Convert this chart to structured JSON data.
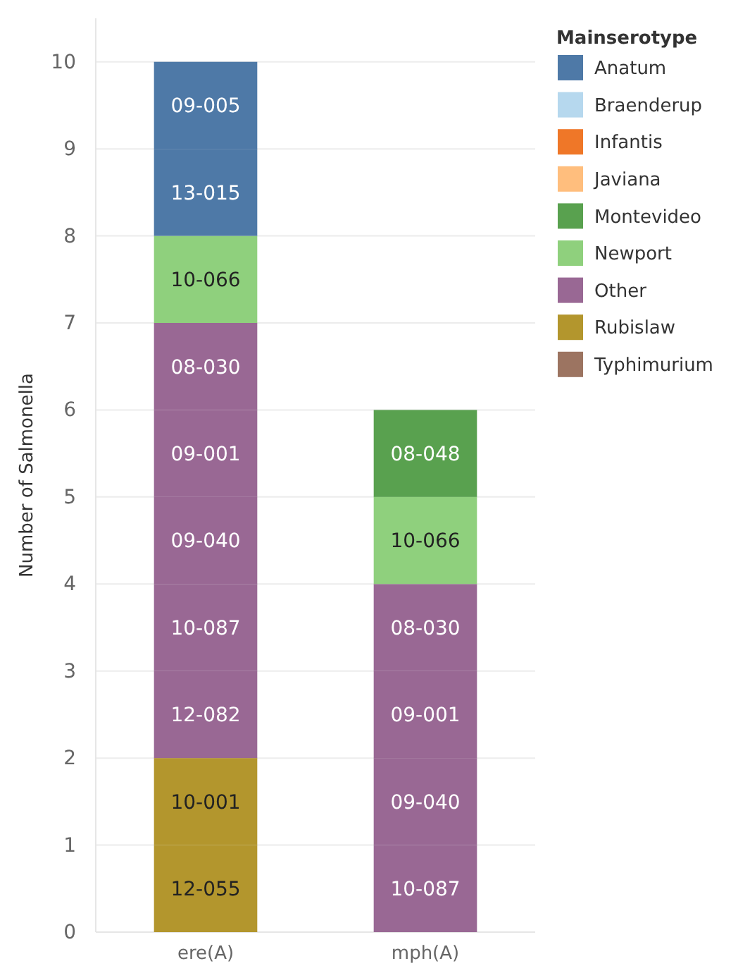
{
  "chart_data": {
    "type": "bar",
    "stacked": true,
    "ylabel": "Number of Salmonella",
    "legend_title": "Mainserotype",
    "legend": "right",
    "grid": "y",
    "categories": [
      "ere(A)",
      "mph(A)"
    ],
    "ylim": [
      0,
      10.5
    ],
    "yticks": [
      0,
      1,
      2,
      3,
      4,
      5,
      6,
      7,
      8,
      9,
      10
    ],
    "series": [
      {
        "name": "Typhimurium",
        "color": "#9c7461",
        "values": [
          null,
          null
        ]
      },
      {
        "name": "Rubislaw",
        "color": "#b3962d",
        "values": [
          1,
          null
        ],
        "value_labels": [
          "12-055",
          null
        ]
      },
      {
        "color": "#b3962d",
        "values": [
          1,
          null
        ],
        "value_labels": [
          "10-001",
          null
        ]
      },
      {
        "name": "Other",
        "color": "#996894",
        "values": [
          1,
          1
        ],
        "value_labels": [
          "12-082",
          "10-087"
        ]
      },
      {
        "color": "#996894",
        "values": [
          1,
          1
        ],
        "value_labels": [
          "10-087",
          "09-040"
        ]
      },
      {
        "color": "#996894",
        "values": [
          1,
          1
        ],
        "value_labels": [
          "09-040",
          "09-001"
        ]
      },
      {
        "color": "#996894",
        "values": [
          1,
          1
        ],
        "value_labels": [
          "09-001",
          "08-030"
        ]
      },
      {
        "color": "#996894",
        "values": [
          1,
          null
        ],
        "value_labels": [
          "08-030",
          null
        ]
      },
      {
        "name": "Newport",
        "color": "#8fd07d",
        "values": [
          1,
          1
        ],
        "value_labels": [
          "10-066",
          "10-066"
        ]
      },
      {
        "name": "Montevideo",
        "color": "#59a14f",
        "values": [
          null,
          1
        ],
        "value_labels": [
          null,
          "08-048"
        ]
      },
      {
        "name": "Javiana",
        "color": "#ffbe7d",
        "values": [
          null,
          null
        ]
      },
      {
        "name": "Infantis",
        "color": "#ef7728",
        "values": [
          null,
          null
        ]
      },
      {
        "name": "Braenderup",
        "color": "#b6d8ee",
        "values": [
          null,
          null
        ]
      },
      {
        "color": "#4e79a7",
        "values": [
          1,
          null
        ],
        "value_labels": [
          "13-015",
          null
        ]
      },
      {
        "name": "Anatum",
        "color": "#4e79a7",
        "values": [
          1,
          null
        ],
        "value_labels": [
          "09-005",
          null
        ]
      }
    ]
  }
}
